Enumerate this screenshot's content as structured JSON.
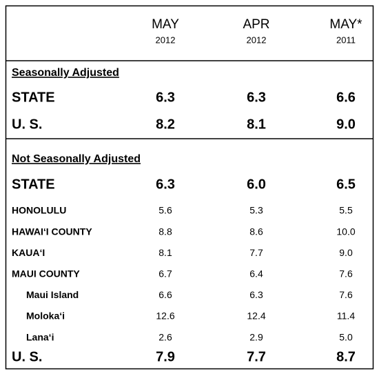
{
  "columns": [
    {
      "month": "MAY",
      "year": "2012"
    },
    {
      "month": "APR",
      "year": "2012"
    },
    {
      "month": "MAY*",
      "year": "2011"
    }
  ],
  "seasonally_adjusted": {
    "title": "Seasonally Adjusted",
    "state": {
      "label": "STATE",
      "values": [
        "6.3",
        "6.3",
        "6.6"
      ]
    },
    "us": {
      "label": "U. S.",
      "values": [
        "8.2",
        "8.1",
        "9.0"
      ]
    }
  },
  "not_seasonally_adjusted": {
    "title": "Not Seasonally Adjusted",
    "state": {
      "label": "STATE",
      "values": [
        "6.3",
        "6.0",
        "6.5"
      ]
    },
    "counties": [
      {
        "label": "HONOLULU",
        "values": [
          "5.6",
          "5.3",
          "5.5"
        ]
      },
      {
        "label": "HAWAI‘I COUNTY",
        "values": [
          "8.8",
          "8.6",
          "10.0"
        ]
      },
      {
        "label": "KAUA‘I",
        "values": [
          "8.1",
          "7.7",
          "9.0"
        ]
      },
      {
        "label": "MAUI COUNTY",
        "values": [
          "6.7",
          "6.4",
          "7.6"
        ],
        "islands": [
          {
            "label": "Maui Island",
            "values": [
              "6.6",
              "6.3",
              "7.6"
            ]
          },
          {
            "label": "Moloka‘i",
            "values": [
              "12.6",
              "12.4",
              "11.4"
            ]
          },
          {
            "label": "Lana‘i",
            "values": [
              "2.6",
              "2.9",
              "5.0"
            ]
          }
        ]
      }
    ],
    "us": {
      "label": "U. S.",
      "values": [
        "7.9",
        "7.7",
        "8.7"
      ]
    }
  }
}
